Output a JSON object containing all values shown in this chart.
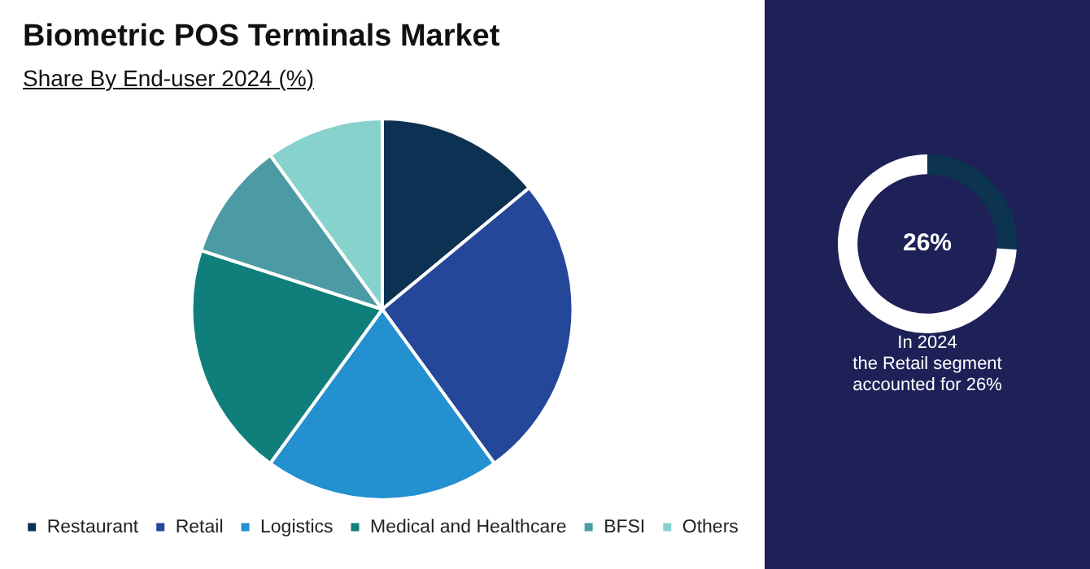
{
  "chart_data": [
    {
      "type": "pie",
      "title": "Biometric POS Terminals Market",
      "subtitle": "Share By End-user 2024 (%)",
      "categories": [
        "Restaurant",
        "Retail",
        "Logistics",
        "Medical and Healthcare",
        "BFSI",
        "Others"
      ],
      "values": [
        14,
        26,
        20,
        20,
        10,
        10
      ],
      "colors": [
        "#0c3152",
        "#24479a",
        "#2390cf",
        "#107f7c",
        "#4c9aa3",
        "#88d2cd"
      ],
      "legend": "bottom"
    },
    {
      "type": "donut",
      "categories": [
        null,
        null
      ],
      "values": [
        26,
        74
      ],
      "colors": [
        "#0c3350",
        "#ffffff"
      ],
      "annotations": [
        "26%",
        "In 2024 the Retail segment accounted for 26%"
      ]
    }
  ]
}
